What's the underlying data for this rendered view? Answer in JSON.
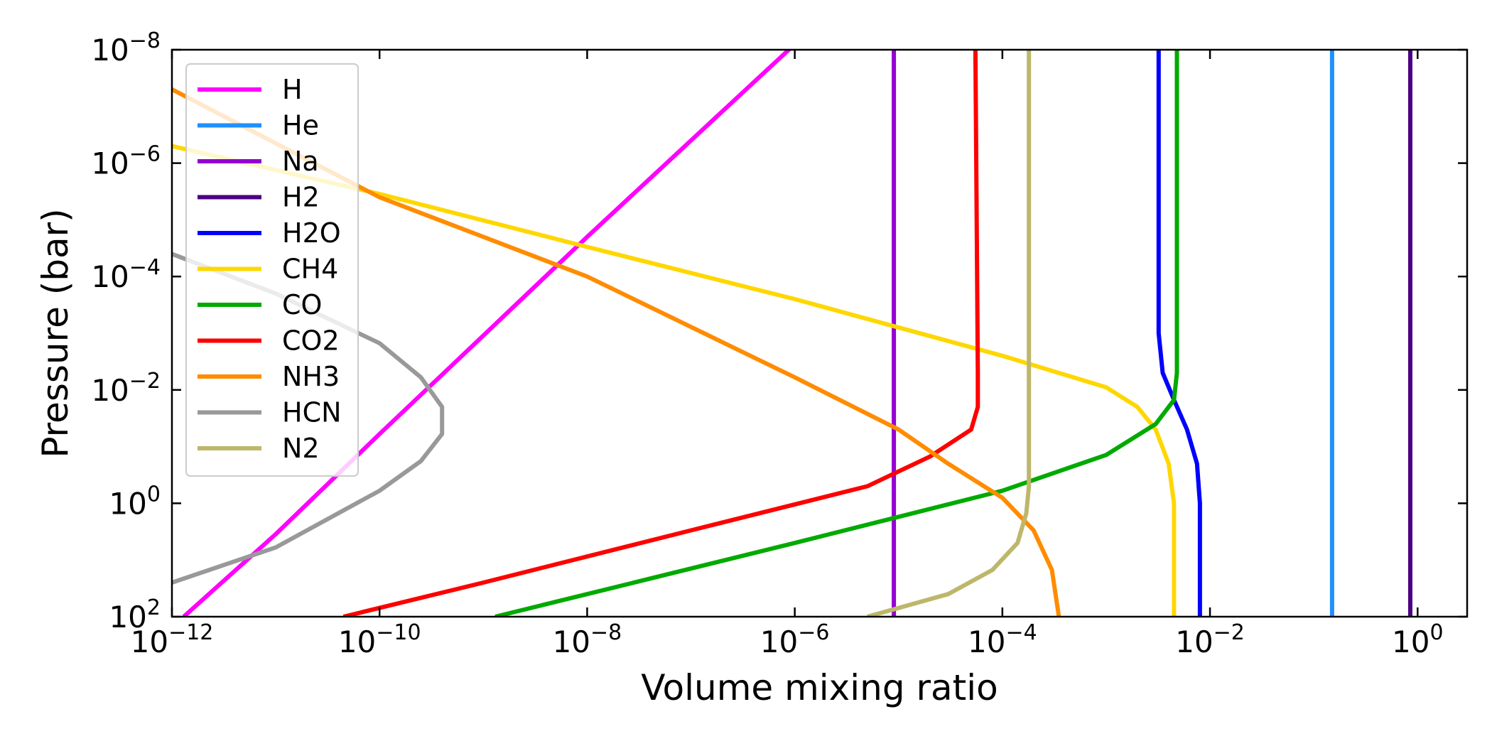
{
  "chart_data": {
    "type": "line",
    "xlabel": "Volume mixing ratio",
    "ylabel": "Pressure (bar)",
    "x_scale": "log",
    "y_scale": "log",
    "y_inverted": true,
    "xlim": [
      1e-12,
      3
    ],
    "ylim": [
      100,
      1e-08
    ],
    "x_ticks": [
      {
        "value": 1e-12,
        "base": "10",
        "exp": "−12"
      },
      {
        "value": 1e-10,
        "base": "10",
        "exp": "−10"
      },
      {
        "value": 1e-08,
        "base": "10",
        "exp": "−8"
      },
      {
        "value": 1e-06,
        "base": "10",
        "exp": "−6"
      },
      {
        "value": 0.0001,
        "base": "10",
        "exp": "−4"
      },
      {
        "value": 0.01,
        "base": "10",
        "exp": "−2"
      },
      {
        "value": 1,
        "base": "10",
        "exp": "0"
      }
    ],
    "y_ticks": [
      {
        "value": 1e-08,
        "base": "10",
        "exp": "−8"
      },
      {
        "value": 1e-06,
        "base": "10",
        "exp": "−6"
      },
      {
        "value": 0.0001,
        "base": "10",
        "exp": "−4"
      },
      {
        "value": 0.01,
        "base": "10",
        "exp": "−2"
      },
      {
        "value": 1,
        "base": "10",
        "exp": "0"
      },
      {
        "value": 100,
        "base": "10",
        "exp": "2"
      }
    ],
    "grid": false,
    "legend_position": "top-left",
    "series": [
      {
        "name": "H",
        "color": "#ff00ff",
        "points": [
          [
            1.3e-12,
            100
          ],
          [
            1e-11,
            3.5
          ],
          [
            1e-10,
            0.06
          ],
          [
            1e-09,
            0.0011
          ],
          [
            1e-08,
            2e-05
          ],
          [
            1e-07,
            4e-07
          ],
          [
            1e-06,
            8e-09
          ]
        ]
      },
      {
        "name": "He",
        "color": "#1e90ff",
        "points": [
          [
            0.15,
            100
          ],
          [
            0.15,
            0.01
          ],
          [
            0.15,
            1e-08
          ]
        ]
      },
      {
        "name": "Na",
        "color": "#9400d3",
        "points": [
          [
            9e-06,
            100
          ],
          [
            9e-06,
            1
          ],
          [
            9e-06,
            1e-08
          ]
        ]
      },
      {
        "name": "H2",
        "color": "#4b0082",
        "points": [
          [
            0.85,
            100
          ],
          [
            0.85,
            1
          ],
          [
            0.85,
            1e-08
          ]
        ]
      },
      {
        "name": "H2O",
        "color": "#0000ff",
        "points": [
          [
            0.008,
            100
          ],
          [
            0.008,
            1
          ],
          [
            0.0075,
            0.2
          ],
          [
            0.006,
            0.05
          ],
          [
            0.0045,
            0.015
          ],
          [
            0.0035,
            0.005
          ],
          [
            0.0032,
            0.001
          ],
          [
            0.0032,
            1e-08
          ]
        ]
      },
      {
        "name": "CH4",
        "color": "#ffd700",
        "points": [
          [
            1e-12,
            5e-07
          ],
          [
            1e-10,
            3.5e-06
          ],
          [
            1e-08,
            3e-05
          ],
          [
            1e-06,
            0.00025
          ],
          [
            0.0001,
            0.0025
          ],
          [
            0.001,
            0.009
          ],
          [
            0.002,
            0.02
          ],
          [
            0.003,
            0.05
          ],
          [
            0.004,
            0.2
          ],
          [
            0.0045,
            1
          ],
          [
            0.0045,
            100
          ]
        ]
      },
      {
        "name": "CO",
        "color": "#00aa00",
        "points": [
          [
            1.3e-09,
            100
          ],
          [
            1e-08,
            40
          ],
          [
            1e-06,
            5
          ],
          [
            0.0001,
            0.6
          ],
          [
            0.001,
            0.14
          ],
          [
            0.003,
            0.04
          ],
          [
            0.0045,
            0.015
          ],
          [
            0.0048,
            0.005
          ],
          [
            0.0048,
            1e-08
          ]
        ]
      },
      {
        "name": "CO2",
        "color": "#ff0000",
        "points": [
          [
            4.5e-11,
            100
          ],
          [
            1e-09,
            25
          ],
          [
            1e-07,
            3
          ],
          [
            5e-06,
            0.5
          ],
          [
            2e-05,
            0.15
          ],
          [
            5e-05,
            0.05
          ],
          [
            5.8e-05,
            0.02
          ],
          [
            5.8e-05,
            0.005
          ],
          [
            5.5e-05,
            1e-08
          ]
        ]
      },
      {
        "name": "NH3",
        "color": "#ff8c00",
        "points": [
          [
            1e-12,
            5e-08
          ],
          [
            1e-10,
            4e-06
          ],
          [
            1e-08,
            0.0001
          ],
          [
            1e-06,
            0.006
          ],
          [
            1e-05,
            0.05
          ],
          [
            3e-05,
            0.2
          ],
          [
            0.0001,
            0.8
          ],
          [
            0.0002,
            3
          ],
          [
            0.0003,
            15
          ],
          [
            0.00035,
            100
          ]
        ]
      },
      {
        "name": "HCN",
        "color": "#999999",
        "points": [
          [
            1e-12,
            4e-05
          ],
          [
            1e-11,
            0.0002
          ],
          [
            1e-10,
            0.0015
          ],
          [
            2.5e-10,
            0.006
          ],
          [
            4e-10,
            0.02
          ],
          [
            4e-10,
            0.06
          ],
          [
            2.5e-10,
            0.18
          ],
          [
            1e-10,
            0.6
          ],
          [
            1e-11,
            6
          ],
          [
            1e-12,
            25
          ]
        ]
      },
      {
        "name": "N2",
        "color": "#bdb76b",
        "points": [
          [
            5e-06,
            100
          ],
          [
            3e-05,
            40
          ],
          [
            8e-05,
            15
          ],
          [
            0.00014,
            5
          ],
          [
            0.00017,
            1.5
          ],
          [
            0.00018,
            0.5
          ],
          [
            0.00018,
            0.1
          ],
          [
            0.00018,
            1e-08
          ]
        ]
      }
    ]
  }
}
